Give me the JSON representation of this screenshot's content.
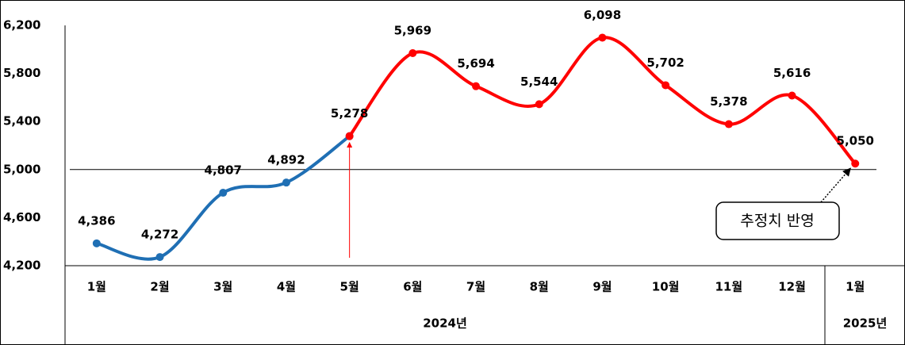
{
  "chart_data": {
    "type": "line",
    "categories": [
      "1월",
      "2월",
      "3월",
      "4월",
      "5월",
      "6월",
      "7월",
      "8월",
      "9월",
      "10월",
      "11월",
      "12월",
      "1월"
    ],
    "x_groups": [
      "2024년",
      "2025년"
    ],
    "series": [
      {
        "color": "#1f6fb4",
        "values": [
          4386,
          4272,
          4807,
          4892,
          5278,
          null,
          null,
          null,
          null,
          null,
          null,
          null,
          null
        ],
        "value_labels": [
          "4,386",
          "4,272",
          "4,807",
          "4,892",
          "5,278",
          null,
          null,
          null,
          null,
          null,
          null,
          null,
          null
        ]
      },
      {
        "color": "#ff0000",
        "values": [
          null,
          null,
          null,
          null,
          5278,
          5969,
          5694,
          5544,
          6098,
          5702,
          5378,
          5616,
          5050
        ],
        "value_labels": [
          null,
          null,
          null,
          null,
          null,
          "5,969",
          "5,694",
          "5,544",
          "6,098",
          "5,702",
          "5,378",
          "5,616",
          "5,050"
        ]
      }
    ],
    "ylim": [
      4200,
      6200
    ],
    "yticks": [
      {
        "value": 4200,
        "label": "4,200"
      },
      {
        "value": 4600,
        "label": "4,600"
      },
      {
        "value": 5000,
        "label": "5,000"
      },
      {
        "value": 5400,
        "label": "5,400"
      },
      {
        "value": 5800,
        "label": "5,800"
      },
      {
        "value": 6200,
        "label": "6,200"
      }
    ],
    "reference_line": 5000,
    "annotation": "추정치 반영"
  }
}
